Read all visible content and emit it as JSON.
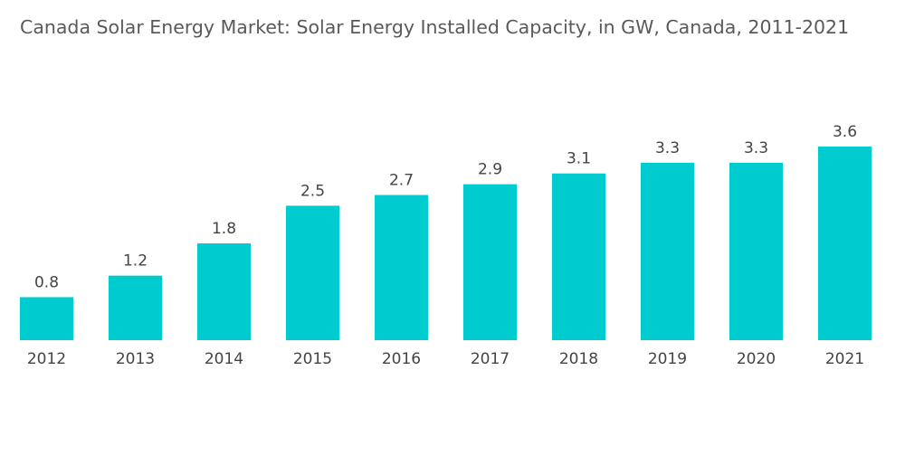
{
  "chart_data": {
    "type": "bar",
    "title": "Canada Solar Energy Market: Solar Energy Installed Capacity, in GW, Canada, 2011-2021",
    "categories": [
      "2012",
      "2013",
      "2014",
      "2015",
      "2016",
      "2017",
      "2018",
      "2019",
      "2020",
      "2021"
    ],
    "series": [
      {
        "values": [
          0.8,
          1.2,
          1.8,
          2.5,
          2.7,
          2.9,
          3.1,
          3.3,
          3.3,
          3.6
        ],
        "data_labels": [
          "0.8",
          "1.2",
          "1.8",
          "2.5",
          "2.7",
          "2.9",
          "3.1",
          "3.3",
          "3.3",
          "3.6"
        ]
      }
    ],
    "xlabel": "",
    "ylabel": "",
    "ylim": [
      0,
      3.6
    ],
    "grid": false,
    "legend": "none",
    "colors": {
      "bar": "#00CCD0",
      "title": "#5a5a5a",
      "label": "#444444"
    }
  }
}
